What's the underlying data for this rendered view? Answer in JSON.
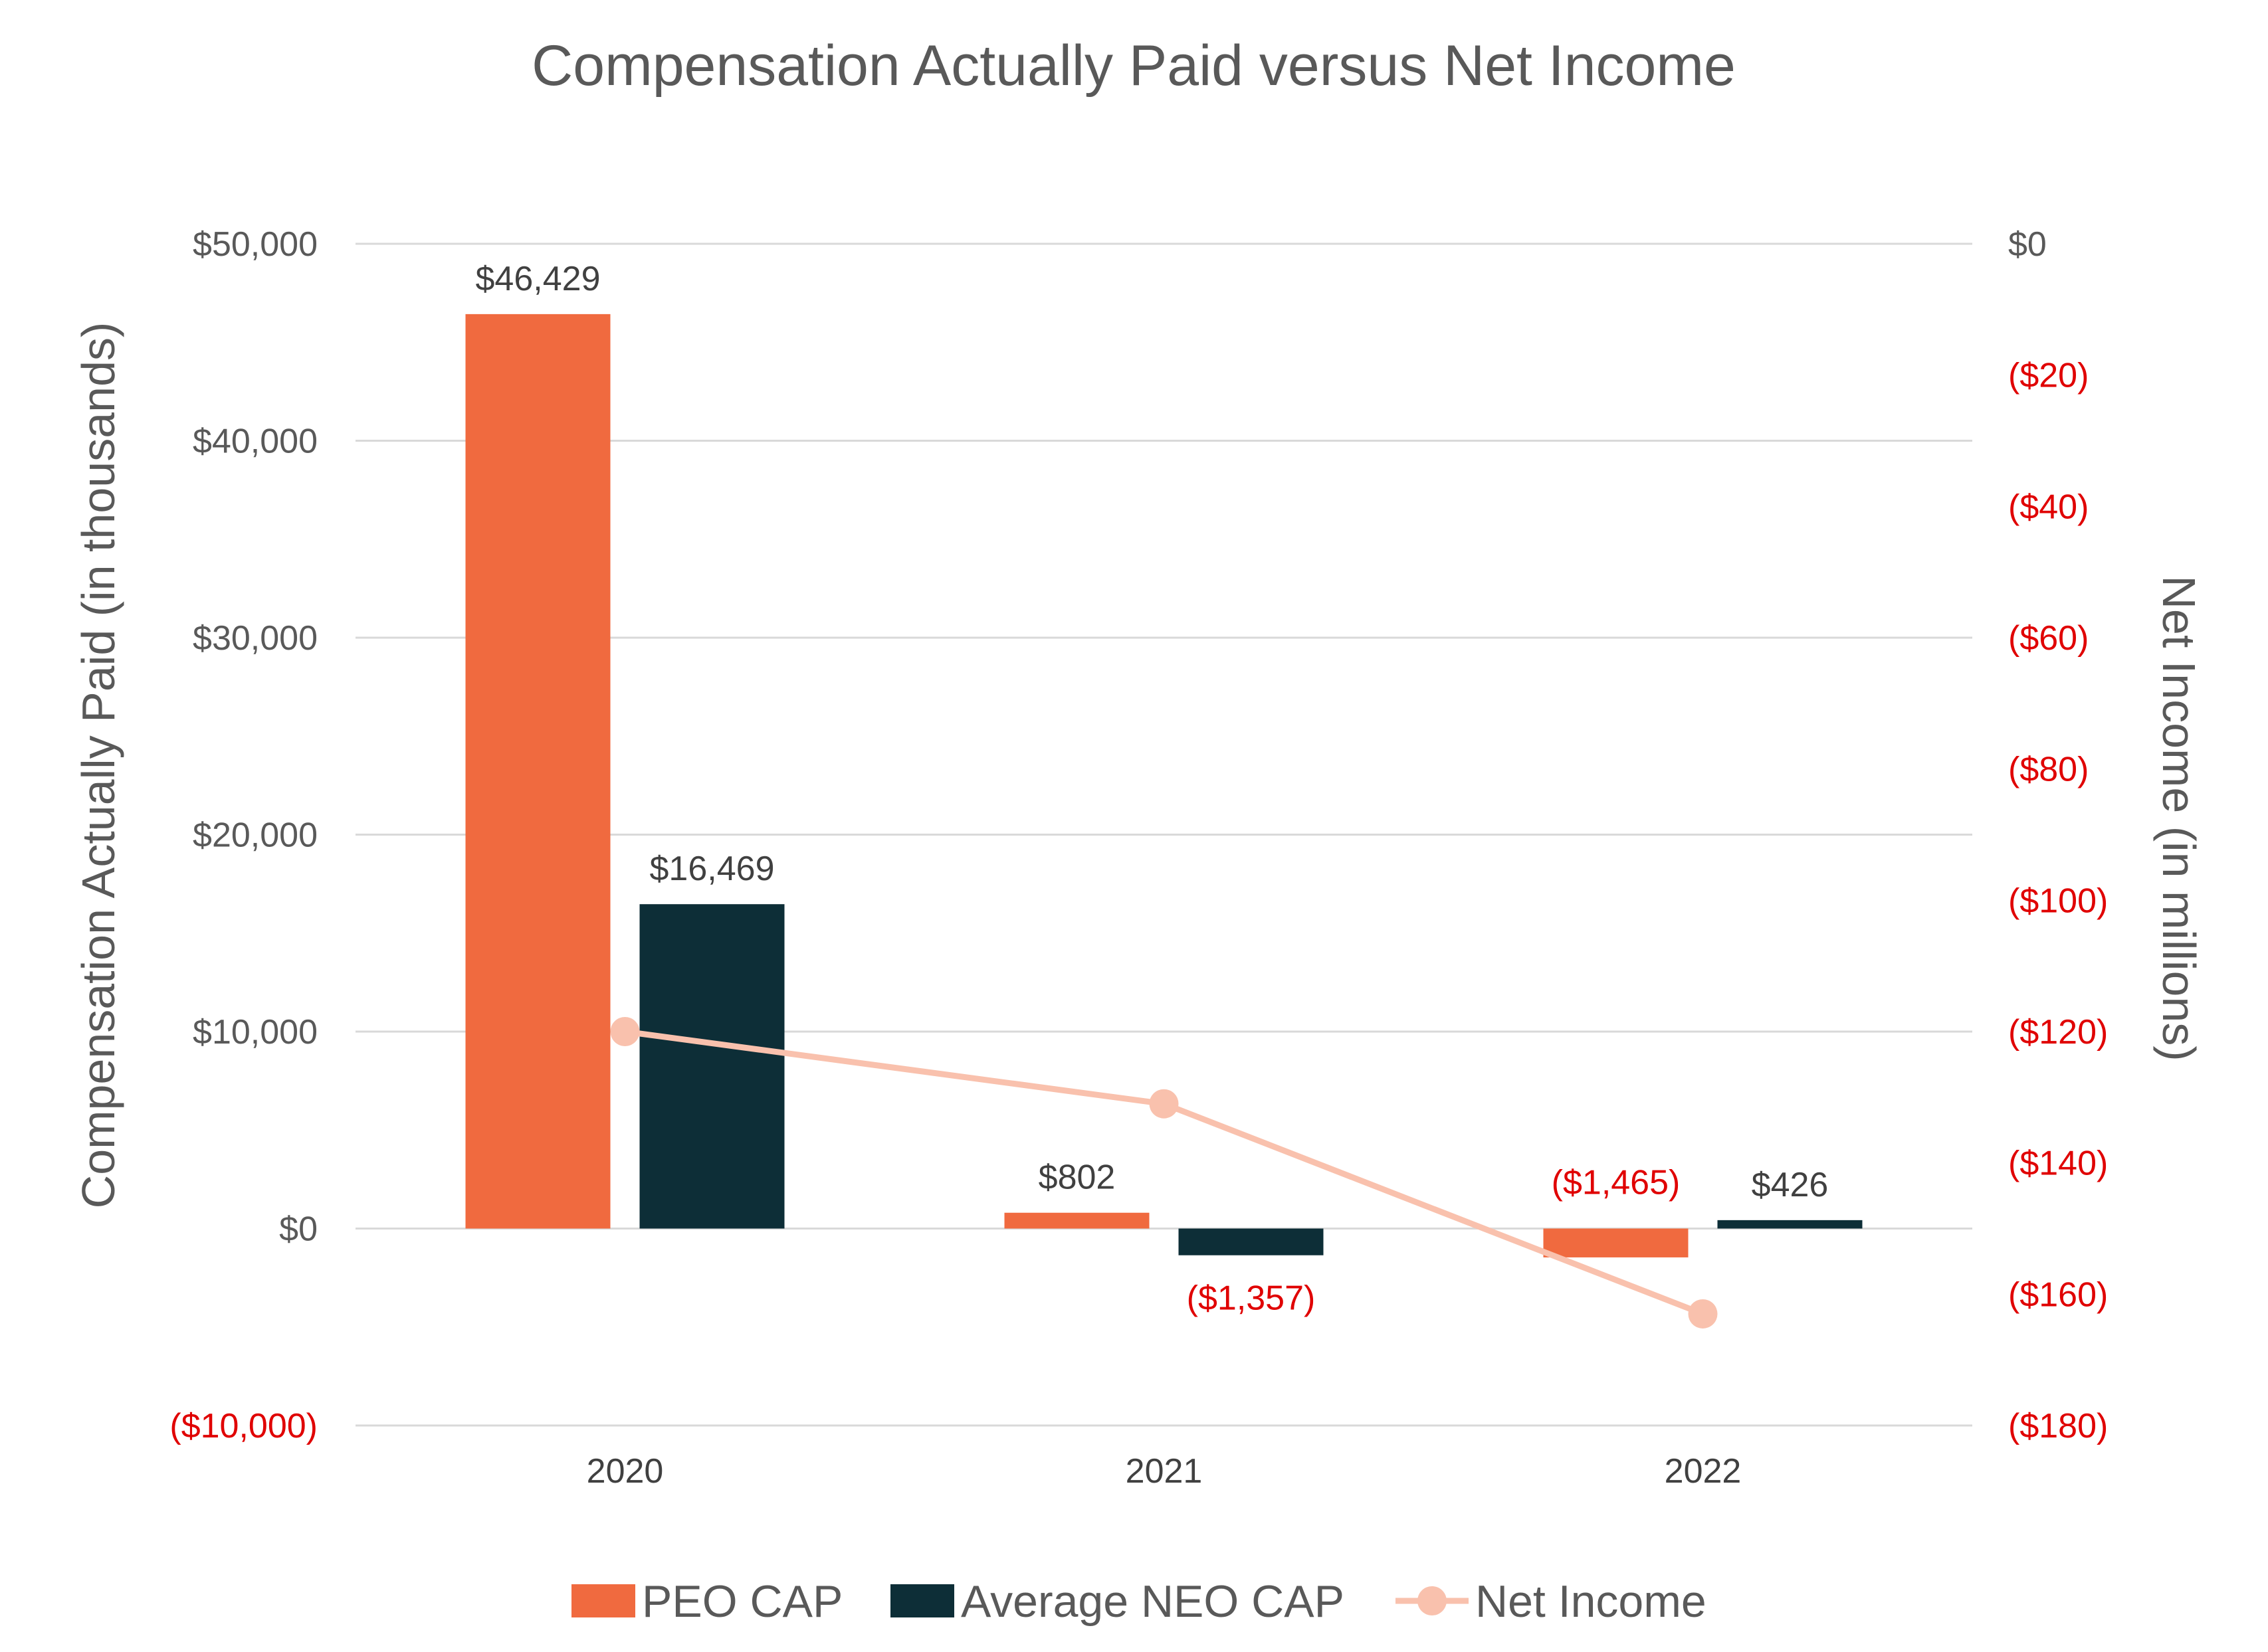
{
  "chart_data": {
    "type": "bar",
    "title": "Compensation Actually Paid versus Net Income",
    "categories": [
      "2020",
      "2021",
      "2022"
    ],
    "series": [
      {
        "name": "PEO CAP",
        "type": "bar",
        "axis": "left",
        "color": "#f06a3f",
        "values": [
          46429,
          802,
          -1465
        ],
        "labels": [
          "$46,429",
          "$802",
          "($1,465)"
        ]
      },
      {
        "name": "Average NEO CAP",
        "type": "bar",
        "axis": "left",
        "color": "#0d2e37",
        "values": [
          16469,
          -1357,
          426
        ],
        "labels": [
          "$16,469",
          "($1,357)",
          "$426"
        ]
      },
      {
        "name": "Net Income",
        "type": "line",
        "axis": "right",
        "color": "#f9c1ad",
        "values": [
          -120,
          -131,
          -163
        ]
      }
    ],
    "ylabel": "Compensation Actually Paid (in thousands)",
    "y2label": "Net Income (in millions)",
    "ylim": [
      -10000,
      50000
    ],
    "y2lim": [
      -180,
      0
    ],
    "yticks": [
      -10000,
      0,
      10000,
      20000,
      30000,
      40000,
      50000
    ],
    "yticklabels": [
      "($10,000)",
      "$0",
      "$10,000",
      "$20,000",
      "$30,000",
      "$40,000",
      "$50,000"
    ],
    "y2ticks": [
      0,
      -20,
      -40,
      -60,
      -80,
      -100,
      -120,
      -140,
      -160,
      -180
    ],
    "y2ticklabels": [
      "$0",
      "($20)",
      "($40)",
      "($60)",
      "($80)",
      "($100)",
      "($120)",
      "($140)",
      "($160)",
      "($180)"
    ],
    "grid": true,
    "legend": "bottom",
    "colors": {
      "grid": "#d9d9d9",
      "text": "#595959",
      "negative": "#e00000"
    }
  }
}
